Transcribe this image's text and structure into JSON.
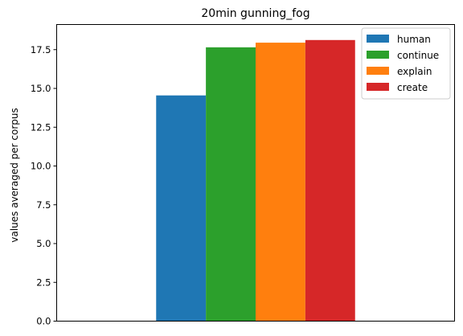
{
  "chart_data": {
    "type": "bar",
    "title": "20min gunning_fog",
    "xlabel": "",
    "ylabel": "values averaged per corpus",
    "ylim": [
      0,
      19.12
    ],
    "yticks": [
      0.0,
      2.5,
      5.0,
      7.5,
      10.0,
      12.5,
      15.0,
      17.5
    ],
    "ytick_labels": [
      "0.0",
      "2.5",
      "5.0",
      "7.5",
      "10.0",
      "12.5",
      "15.0",
      "17.5"
    ],
    "grid": false,
    "legend_position": "top-right",
    "series": [
      {
        "name": "human",
        "value": 14.55,
        "color": "#1f77b4"
      },
      {
        "name": "continue",
        "value": 17.65,
        "color": "#2ca02c"
      },
      {
        "name": "explain",
        "value": 17.95,
        "color": "#ff7f0e"
      },
      {
        "name": "create",
        "value": 18.12,
        "color": "#d62728"
      }
    ]
  }
}
